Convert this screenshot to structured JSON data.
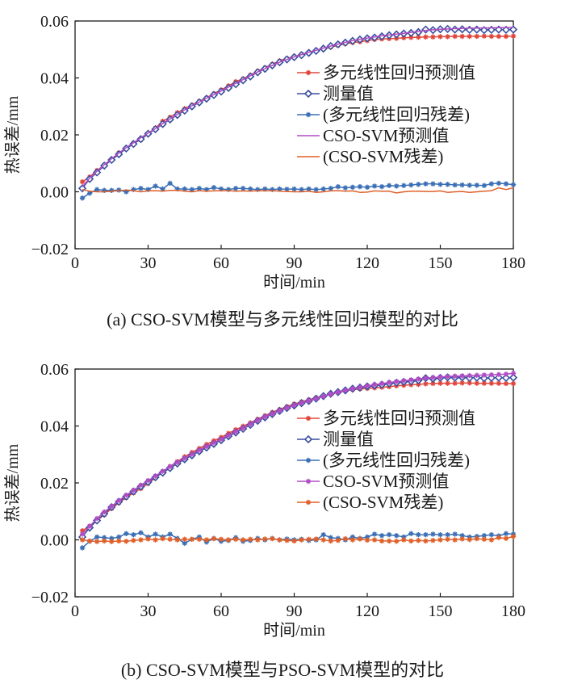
{
  "chart_data": [
    {
      "type": "line",
      "caption": "(a)  CSO-SVM模型与多元线性回归模型的对比",
      "xlabel": "时间/min",
      "ylabel": "热误差/mm",
      "xlim": [
        0,
        180
      ],
      "ylim": [
        -0.02,
        0.06
      ],
      "xticks": [
        "0",
        "30",
        "60",
        "90",
        "120",
        "150",
        "180"
      ],
      "yticks": [
        "0.06",
        "0.04",
        "0.02",
        "0.00",
        "−0.02"
      ],
      "grid": false,
      "legend_position": "center-right",
      "x": [
        3,
        6,
        9,
        12,
        15,
        18,
        21,
        24,
        27,
        30,
        33,
        36,
        39,
        42,
        45,
        48,
        51,
        54,
        57,
        60,
        63,
        66,
        69,
        72,
        75,
        78,
        81,
        84,
        87,
        90,
        93,
        96,
        99,
        102,
        105,
        108,
        111,
        114,
        117,
        120,
        123,
        126,
        129,
        132,
        135,
        138,
        141,
        144,
        147,
        150,
        153,
        156,
        159,
        162,
        165,
        168,
        171,
        174,
        177,
        180
      ],
      "series": [
        {
          "name": "多元线性回归预测值",
          "legend_label": "多元线性回归预测值",
          "color": "#e0463a",
          "marker": "star",
          "values": [
            0.0035,
            0.0052,
            0.0075,
            0.0094,
            0.0115,
            0.0137,
            0.0152,
            0.0172,
            0.0182,
            0.0205,
            0.0224,
            0.0248,
            0.0262,
            0.0278,
            0.0292,
            0.0305,
            0.0318,
            0.033,
            0.0345,
            0.0358,
            0.0372,
            0.0387,
            0.0397,
            0.041,
            0.0424,
            0.0436,
            0.0448,
            0.046,
            0.0468,
            0.0475,
            0.0483,
            0.049,
            0.0497,
            0.0503,
            0.0508,
            0.0514,
            0.052,
            0.0524,
            0.0527,
            0.0531,
            0.0535,
            0.0537,
            0.0538,
            0.0539,
            0.0541,
            0.0542,
            0.0543,
            0.0544,
            0.0544,
            0.0545,
            0.0545,
            0.0546,
            0.0546,
            0.0546,
            0.0546,
            0.0547,
            0.0546,
            0.0546,
            0.0546,
            0.0547
          ]
        },
        {
          "name": "测量值",
          "legend_label": "测量值",
          "color": "#3a4f9e",
          "marker": "diamond",
          "values": [
            0.0012,
            0.0045,
            0.0068,
            0.0092,
            0.0112,
            0.0132,
            0.0152,
            0.0168,
            0.0185,
            0.0204,
            0.022,
            0.0238,
            0.0254,
            0.027,
            0.0285,
            0.03,
            0.0314,
            0.0327,
            0.034,
            0.0352,
            0.0365,
            0.0378,
            0.0392,
            0.0405,
            0.042,
            0.0432,
            0.0444,
            0.0455,
            0.0465,
            0.0473,
            0.048,
            0.0488,
            0.0495,
            0.0503,
            0.0512,
            0.0518,
            0.0524,
            0.053,
            0.0535,
            0.0539,
            0.0542,
            0.0546,
            0.055,
            0.0553,
            0.0556,
            0.0558,
            0.0561,
            0.057,
            0.0568,
            0.0571,
            0.0572,
            0.057,
            0.0571,
            0.0569,
            0.057,
            0.0568,
            0.0569,
            0.057,
            0.0569,
            0.057
          ]
        },
        {
          "name": "多元线性回归残差",
          "legend_label": "(多元线性回归残差)",
          "color": "#3a6fb5",
          "marker": "star",
          "values": [
            -0.0022,
            -0.0005,
            0.0008,
            0.0005,
            0.0005,
            0.0006,
            0.0,
            0.0008,
            0.0012,
            0.0008,
            0.002,
            0.001,
            0.003,
            0.001,
            0.001,
            0.0008,
            0.0012,
            0.0008,
            0.0015,
            0.001,
            0.0008,
            0.0012,
            0.0012,
            0.001,
            0.0008,
            0.001,
            0.0008,
            0.001,
            0.0009,
            0.001,
            0.0008,
            0.001,
            0.0008,
            0.001,
            0.0012,
            0.0018,
            0.0014,
            0.0016,
            0.0018,
            0.0016,
            0.002,
            0.0018,
            0.0022,
            0.002,
            0.0022,
            0.0024,
            0.0026,
            0.0028,
            0.0028,
            0.0026,
            0.0026,
            0.0024,
            0.0024,
            0.0023,
            0.0023,
            0.0022,
            0.0028,
            0.003,
            0.0028,
            0.0025
          ]
        },
        {
          "name": "CSO-SVM预测值",
          "legend_label": "CSO-SVM预测值",
          "color": "#b14cc4",
          "marker": "none",
          "values": [
            0.0018,
            0.0048,
            0.0072,
            0.0095,
            0.0116,
            0.0136,
            0.0155,
            0.0172,
            0.019,
            0.0206,
            0.0222,
            0.024,
            0.0256,
            0.0272,
            0.0288,
            0.0302,
            0.0315,
            0.0329,
            0.0341,
            0.0354,
            0.0368,
            0.0381,
            0.0394,
            0.0408,
            0.0421,
            0.0433,
            0.0444,
            0.0455,
            0.0465,
            0.0474,
            0.0482,
            0.049,
            0.0497,
            0.0505,
            0.0512,
            0.0519,
            0.0525,
            0.0531,
            0.0536,
            0.054,
            0.0544,
            0.0548,
            0.0551,
            0.0554,
            0.0557,
            0.056,
            0.0563,
            0.0567,
            0.0569,
            0.0571,
            0.0572,
            0.0573,
            0.0574,
            0.0575,
            0.0575,
            0.0576,
            0.0576,
            0.0577,
            0.0577,
            0.0578
          ]
        },
        {
          "name": "CSO-SVM残差",
          "legend_label": "(CSO-SVM残差)",
          "color": "#e0602a",
          "marker": "none",
          "values": [
            0.0008,
            0.0002,
            0.0,
            0.0,
            0.0002,
            0.0004,
            0.0006,
            0.0004,
            0.0,
            0.0003,
            0.0004,
            0.0002,
            0.0005,
            0.0005,
            0.0002,
            0.0,
            0.0004,
            0.0002,
            0.0003,
            0.0004,
            0.0004,
            0.0002,
            0.0003,
            0.0002,
            0.0004,
            0.0003,
            0.0004,
            0.0002,
            0.0001,
            0.0,
            0.0,
            0.0002,
            -0.0002,
            0.0,
            0.0003,
            0.0004,
            0.0002,
            0.0003,
            -0.0002,
            -0.0001,
            0.0003,
            0.0002,
            0.0002,
            -0.0004,
            0.0,
            0.0002,
            0.0002,
            0.0001,
            0.0001,
            0.0003,
            -0.0002,
            0.0,
            0.0001,
            -0.0002,
            0.0,
            0.0002,
            0.0004,
            0.0014,
            0.0008,
            0.0014
          ]
        }
      ]
    },
    {
      "type": "line",
      "caption": "(b)  CSO-SVM模型与PSO-SVM模型的对比",
      "xlabel": "时间/min",
      "ylabel": "热误差/mm",
      "xlim": [
        0,
        180
      ],
      "ylim": [
        -0.02,
        0.06
      ],
      "xticks": [
        "0",
        "30",
        "60",
        "90",
        "120",
        "150",
        "180"
      ],
      "yticks": [
        "0.06",
        "0.04",
        "0.02",
        "0.00",
        "−0.02"
      ],
      "grid": false,
      "legend_position": "center-right",
      "x": [
        3,
        6,
        9,
        12,
        15,
        18,
        21,
        24,
        27,
        30,
        33,
        36,
        39,
        42,
        45,
        48,
        51,
        54,
        57,
        60,
        63,
        66,
        69,
        72,
        75,
        78,
        81,
        84,
        87,
        90,
        93,
        96,
        99,
        102,
        105,
        108,
        111,
        114,
        117,
        120,
        123,
        126,
        129,
        132,
        135,
        138,
        141,
        144,
        147,
        150,
        153,
        156,
        159,
        162,
        165,
        168,
        171,
        174,
        177,
        180
      ],
      "series": [
        {
          "name": "多元线性回归预测值",
          "legend_label": "多元线性回归预测值",
          "color": "#e0463a",
          "marker": "star",
          "values": [
            0.0032,
            0.0048,
            0.0068,
            0.0088,
            0.011,
            0.013,
            0.0148,
            0.0165,
            0.018,
            0.0198,
            0.0218,
            0.024,
            0.0258,
            0.0275,
            0.0292,
            0.0307,
            0.0321,
            0.0335,
            0.0348,
            0.036,
            0.0374,
            0.0387,
            0.0399,
            0.0411,
            0.0424,
            0.0436,
            0.0448,
            0.0458,
            0.0468,
            0.0477,
            0.0485,
            0.0492,
            0.0499,
            0.0506,
            0.0512,
            0.0518,
            0.0524,
            0.0528,
            0.053,
            0.0532,
            0.0534,
            0.0536,
            0.0538,
            0.0541,
            0.0543,
            0.0545,
            0.0546,
            0.0548,
            0.0549,
            0.055,
            0.055,
            0.055,
            0.0551,
            0.0551,
            0.055,
            0.055,
            0.055,
            0.055,
            0.0549,
            0.0549
          ]
        },
        {
          "name": "测量值",
          "legend_label": "测量值",
          "color": "#3a4f9e",
          "marker": "diamond",
          "values": [
            0.001,
            0.0043,
            0.0068,
            0.0092,
            0.0115,
            0.0134,
            0.0152,
            0.017,
            0.0187,
            0.0203,
            0.022,
            0.0236,
            0.0252,
            0.0268,
            0.0283,
            0.0297,
            0.0311,
            0.0324,
            0.0337,
            0.035,
            0.0364,
            0.0377,
            0.039,
            0.0404,
            0.0418,
            0.043,
            0.0442,
            0.0453,
            0.0463,
            0.0472,
            0.048,
            0.0488,
            0.0496,
            0.0505,
            0.0513,
            0.0519,
            0.0525,
            0.0531,
            0.0535,
            0.0539,
            0.0542,
            0.0545,
            0.0549,
            0.0552,
            0.0555,
            0.0557,
            0.056,
            0.0568,
            0.0566,
            0.0569,
            0.0571,
            0.057,
            0.0571,
            0.0569,
            0.057,
            0.0568,
            0.0569,
            0.057,
            0.0569,
            0.057
          ]
        },
        {
          "name": "多元线性回归残差",
          "legend_label": "(多元线性回归残差)",
          "color": "#3a6fb5",
          "marker": "star",
          "values": [
            -0.0028,
            -0.0005,
            0.001,
            0.0008,
            0.0005,
            0.001,
            0.0022,
            0.0018,
            0.0025,
            0.001,
            0.002,
            0.001,
            0.002,
            0.0005,
            -0.0012,
            0.0002,
            0.001,
            -0.0008,
            0.0005,
            -0.0005,
            -0.0002,
            0.0008,
            -0.0005,
            -0.0002,
            0.0005,
            0.0,
            0.0005,
            0.0,
            0.0003,
            0.0,
            0.0002,
            -0.0002,
            0.0,
            0.0018,
            0.0008,
            0.0005,
            0.0,
            0.001,
            0.0005,
            0.001,
            0.002,
            0.0015,
            0.0018,
            0.0015,
            0.001,
            0.0022,
            0.0018,
            0.0018,
            0.002,
            0.0018,
            0.0018,
            0.002,
            0.0015,
            0.001,
            0.0012,
            0.0015,
            0.0018,
            0.0014,
            0.0022,
            0.002
          ]
        },
        {
          "name": "CSO-SVM预测值",
          "legend_label": "CSO-SVM预测值",
          "color": "#b14cc4",
          "marker": "star",
          "values": [
            0.002,
            0.0048,
            0.0075,
            0.0098,
            0.0118,
            0.0138,
            0.0157,
            0.0174,
            0.0192,
            0.0208,
            0.0224,
            0.0241,
            0.0257,
            0.0272,
            0.0287,
            0.0301,
            0.0315,
            0.0328,
            0.0341,
            0.0354,
            0.0367,
            0.038,
            0.0393,
            0.0407,
            0.042,
            0.0432,
            0.0443,
            0.0454,
            0.0464,
            0.0473,
            0.0481,
            0.0489,
            0.0496,
            0.0504,
            0.0512,
            0.0519,
            0.0525,
            0.0531,
            0.0536,
            0.0541,
            0.0545,
            0.0549,
            0.0553,
            0.0556,
            0.0559,
            0.0562,
            0.0565,
            0.0568,
            0.057,
            0.0572,
            0.0574,
            0.0575,
            0.0576,
            0.0577,
            0.0578,
            0.0579,
            0.058,
            0.0581,
            0.0582,
            0.0585
          ]
        },
        {
          "name": "CSO-SVM残差",
          "legend_label": "(CSO-SVM残差)",
          "color": "#e0602a",
          "marker": "star",
          "values": [
            0.0,
            -0.0004,
            -0.0006,
            -0.0004,
            -0.0006,
            -0.0004,
            -0.0005,
            -0.0002,
            0.0,
            0.0003,
            0.0,
            0.0004,
            0.0002,
            0.0,
            0.0002,
            0.0002,
            0.0002,
            0.0,
            0.0004,
            0.0002,
            0.0,
            0.0002,
            0.0,
            0.0002,
            0.0,
            0.0003,
            0.0004,
            0.0,
            -0.0002,
            -0.0004,
            0.0,
            0.0002,
            0.0003,
            0.0,
            -0.0004,
            -0.0002,
            0.0004,
            0.0,
            0.0003,
            -0.0001,
            0.0,
            -0.0004,
            -0.0004,
            -0.0005,
            0.0,
            -0.0004,
            -0.0002,
            -0.0004,
            -0.0002,
            0.0,
            0.0002,
            0.0,
            0.0003,
            0.0001,
            0.0004,
            0.0002,
            0.0,
            0.0008,
            0.0005,
            0.0012
          ]
        }
      ]
    }
  ]
}
